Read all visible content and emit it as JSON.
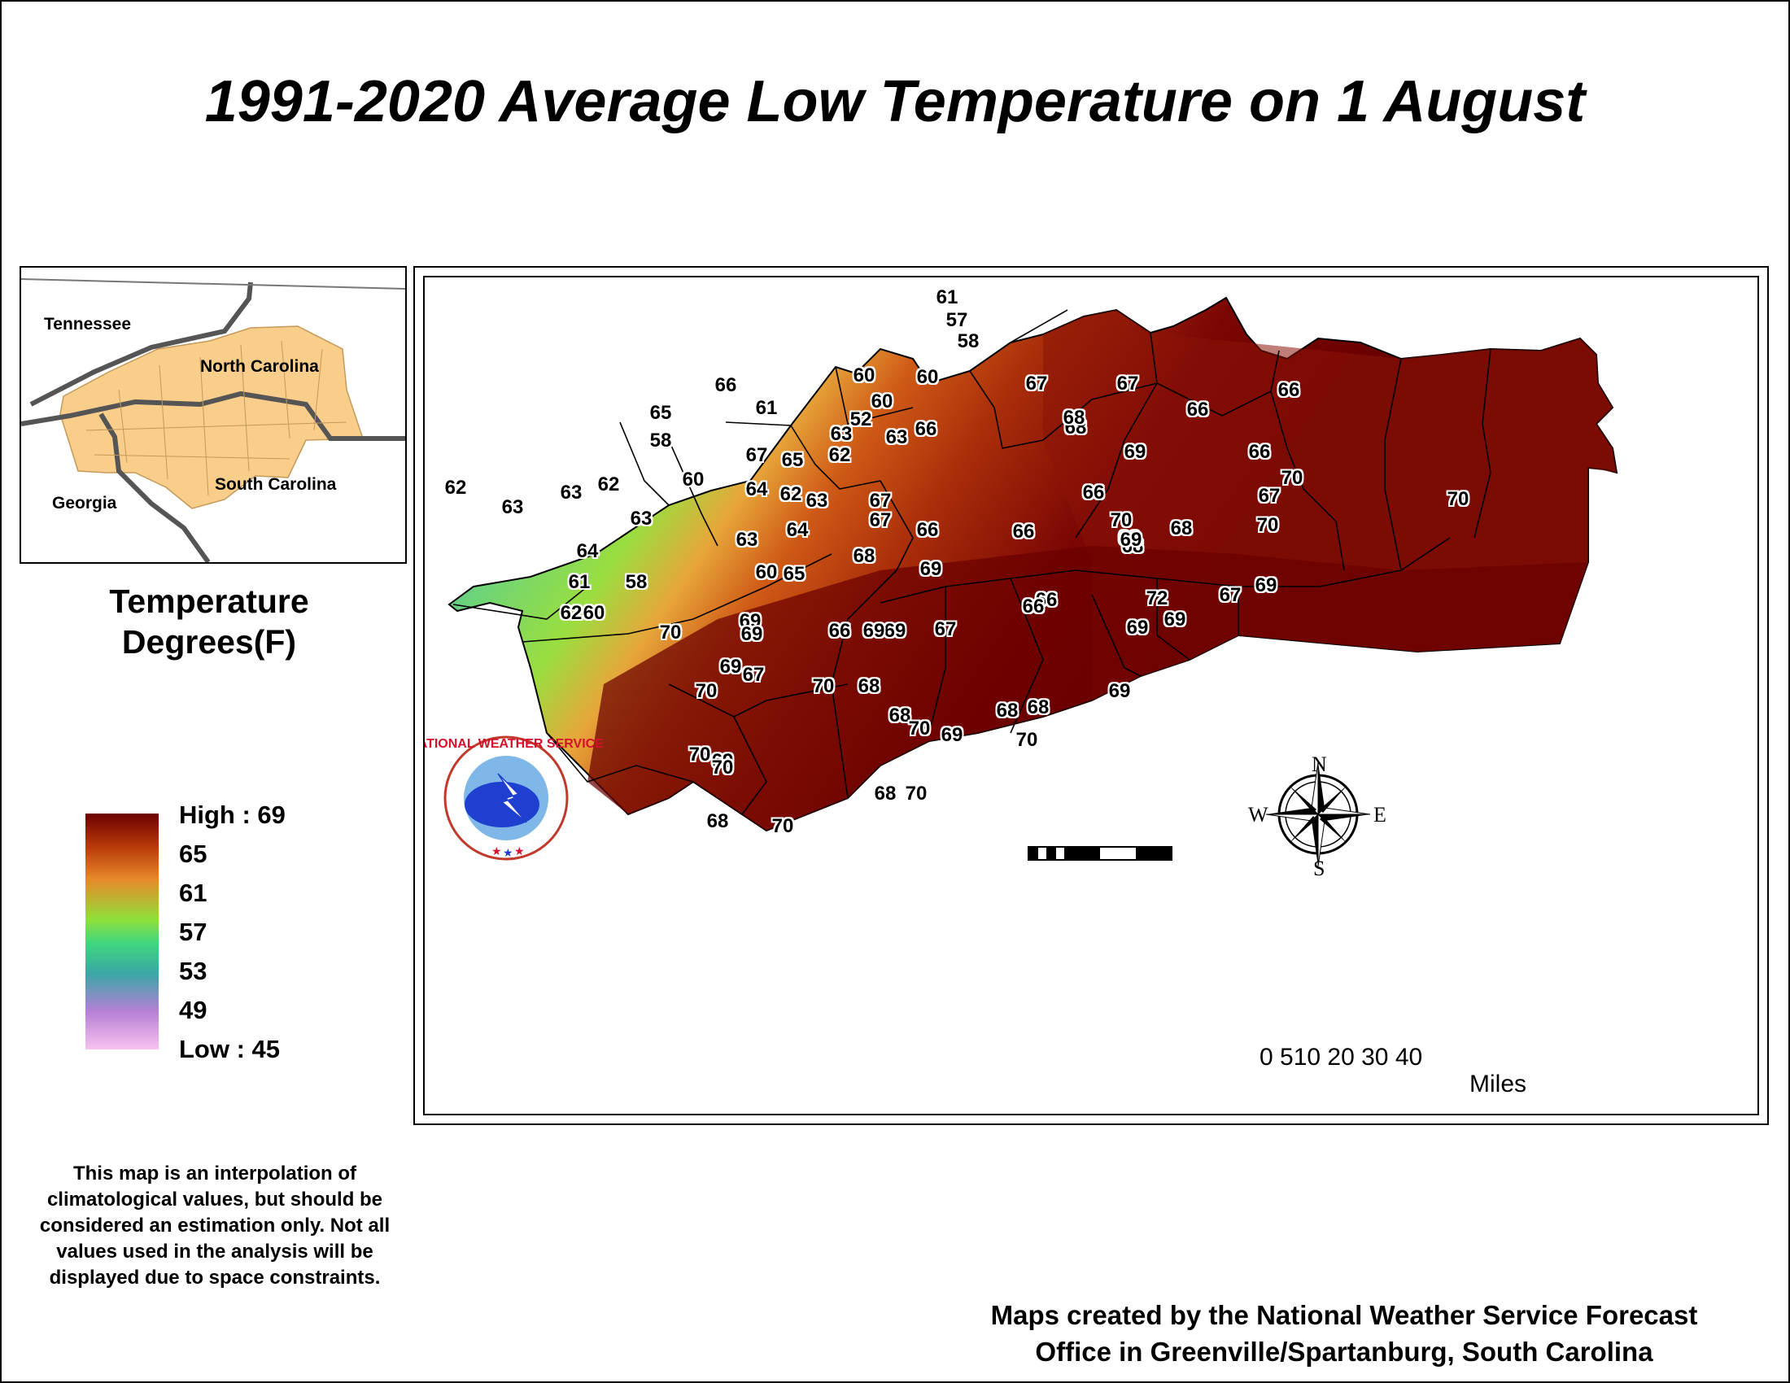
{
  "title": "1991-2020 Average Low Temperature on 1 August",
  "inset": {
    "labels": [
      "Tennessee",
      "North Carolina",
      "Georgia",
      "South Carolina"
    ]
  },
  "legend": {
    "title_line1": "Temperature",
    "title_line2": "Degrees(F)",
    "high_label": "High : 69",
    "ticks": [
      "65",
      "61",
      "57",
      "53",
      "49"
    ],
    "low_label": "Low : 45",
    "colors": [
      "#6b0000",
      "#b83a0a",
      "#e8892b",
      "#8fe03a",
      "#3fd67e",
      "#3aa6a6",
      "#b77fd6",
      "#f6c3ef"
    ]
  },
  "disclaimer": "This map is an interpolation of climatological values, but should be considered an estimation only. Not all values used in the analysis will be displayed due to space constraints.",
  "credit_line1": "Maps created by the National Weather Service Forecast",
  "credit_line2": "Office in Greenville/Spartanburg, South Carolina",
  "scale_bar": {
    "numbers": "0 510  20  30  40",
    "unit": "Miles"
  },
  "compass": {
    "n": "N",
    "s": "S",
    "e": "E",
    "w": "W"
  },
  "logo_text": "NATIONAL WEATHER SERVICE",
  "temperatures": [
    "61",
    "57",
    "58",
    "60",
    "60",
    "52",
    "63",
    "62",
    "63",
    "66",
    "60",
    "66",
    "61",
    "65",
    "58",
    "60",
    "62",
    "63",
    "63",
    "62",
    "63",
    "64",
    "61",
    "58",
    "62",
    "60",
    "65",
    "67",
    "64",
    "62",
    "63",
    "64",
    "63",
    "60",
    "65",
    "67",
    "66",
    "67",
    "67",
    "66",
    "68",
    "67",
    "68",
    "66",
    "66",
    "69",
    "70",
    "70",
    "70",
    "66",
    "67",
    "66",
    "68",
    "69",
    "68",
    "69",
    "66",
    "68",
    "69",
    "70",
    "69",
    "67",
    "72",
    "69",
    "69",
    "66",
    "69",
    "70",
    "69",
    "69",
    "66",
    "67",
    "69",
    "70",
    "69",
    "67",
    "70",
    "68",
    "68",
    "68",
    "68",
    "69",
    "70",
    "69",
    "70",
    "70",
    "69",
    "70",
    "68",
    "70",
    "68",
    "70"
  ]
}
